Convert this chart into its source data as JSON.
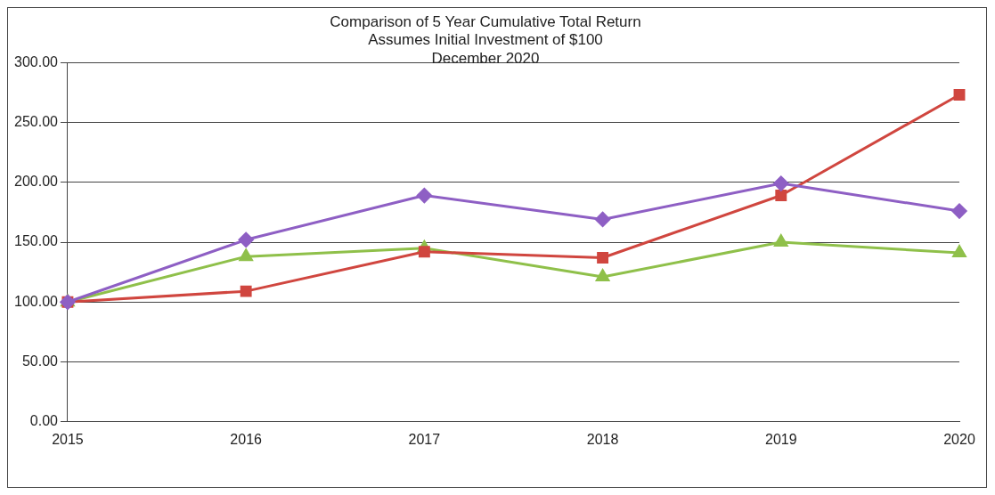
{
  "chart_data": {
    "type": "line",
    "title": "Comparison of 5 Year Cumulative Total Return",
    "subtitle": "Assumes Initial Investment of $100\nDecember 2020",
    "categories": [
      "2015",
      "2016",
      "2017",
      "2018",
      "2019",
      "2020"
    ],
    "series": [
      {
        "color": "#8e5fc4",
        "marker": "diamond",
        "values": [
          100,
          152,
          189,
          169,
          199,
          176
        ]
      },
      {
        "color": "#d0463f",
        "marker": "square",
        "values": [
          100,
          109,
          142,
          137,
          189,
          273
        ]
      },
      {
        "color": "#8fc04a",
        "marker": "triangle",
        "values": [
          100,
          138,
          145,
          121,
          150,
          141
        ]
      }
    ],
    "ylim": [
      0,
      300
    ],
    "yticks": [
      {
        "value": 0,
        "label": "0.00"
      },
      {
        "value": 50,
        "label": "50.00"
      },
      {
        "value": 100,
        "label": "100.00"
      },
      {
        "value": 150,
        "label": "150.00"
      },
      {
        "value": 200,
        "label": "200.00"
      },
      {
        "value": 250,
        "label": "250.00"
      },
      {
        "value": 300,
        "label": "300.00"
      }
    ],
    "grid": "y",
    "legend": false
  }
}
